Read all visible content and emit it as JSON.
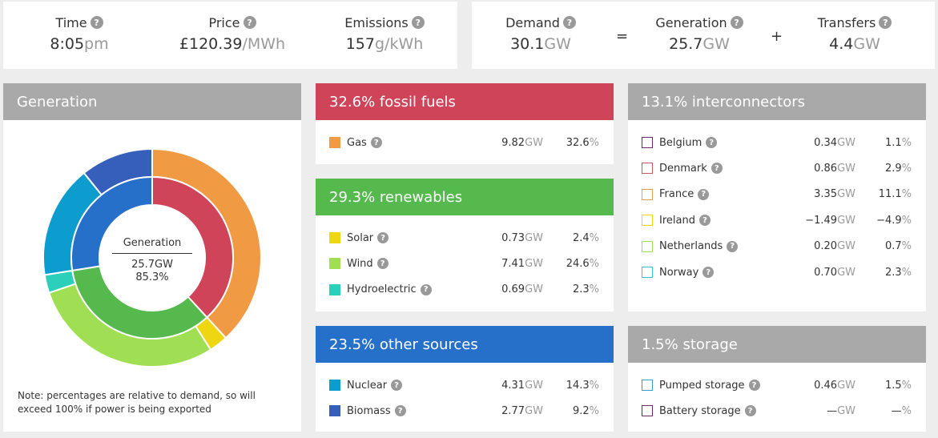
{
  "top_left": {
    "time": {
      "label": "Time",
      "value": "8:05",
      "unit": "pm"
    },
    "price": {
      "label": "Price",
      "value": "£120.39",
      "unit": "/MWh"
    },
    "emissions": {
      "label": "Emissions",
      "value": "157",
      "unit": "g/kWh"
    }
  },
  "top_right": {
    "demand": {
      "label": "Demand",
      "value": "30.1",
      "unit": "GW"
    },
    "equals": "=",
    "generation": {
      "label": "Generation",
      "value": "25.7",
      "unit": "GW"
    },
    "plus": "+",
    "transfers": {
      "label": "Transfers",
      "value": "4.4",
      "unit": "GW"
    }
  },
  "help_glyph": "?",
  "generation_panel": {
    "title": "Generation",
    "center_label": "Generation",
    "center_gw": "25.7GW",
    "center_pct": "85.3%",
    "note": "Note: percentages are relative to demand, so will exceed 100% if power is being exported"
  },
  "chart_data": {
    "type": "pie",
    "inner_ring": [
      {
        "label": "fossil fuels",
        "percent": 32.6,
        "color": "#cf4459"
      },
      {
        "label": "renewables",
        "percent": 29.3,
        "color": "#56b94d"
      },
      {
        "label": "other sources",
        "percent": 23.5,
        "color": "#2770c9"
      }
    ],
    "outer_ring": [
      {
        "label": "Gas",
        "percent": 32.6,
        "color": "#f09a43"
      },
      {
        "label": "Solar",
        "percent": 2.4,
        "color": "#eed612"
      },
      {
        "label": "Wind",
        "percent": 24.6,
        "color": "#a0df53"
      },
      {
        "label": "Hydroelectric",
        "percent": 2.3,
        "color": "#2ccfb9"
      },
      {
        "label": "Nuclear",
        "percent": 14.3,
        "color": "#0d9cce"
      },
      {
        "label": "Biomass",
        "percent": 9.2,
        "color": "#355fba"
      }
    ]
  },
  "fossil": {
    "title": "32.6% fossil fuels",
    "color": "#cf4459",
    "rows": [
      {
        "name": "Gas",
        "value": "9.82",
        "unit": "GW",
        "pct": "32.6",
        "pct_unit": "%",
        "color": "#f09a43"
      }
    ]
  },
  "renewables": {
    "title": "29.3% renewables",
    "color": "#56b94d",
    "rows": [
      {
        "name": "Solar",
        "value": "0.73",
        "unit": "GW",
        "pct": "2.4",
        "pct_unit": "%",
        "color": "#eed612"
      },
      {
        "name": "Wind",
        "value": "7.41",
        "unit": "GW",
        "pct": "24.6",
        "pct_unit": "%",
        "color": "#a0df53"
      },
      {
        "name": "Hydroelectric",
        "value": "0.69",
        "unit": "GW",
        "pct": "2.3",
        "pct_unit": "%",
        "color": "#2ccfb9"
      }
    ]
  },
  "other": {
    "title": "23.5% other sources",
    "color": "#2770c9",
    "rows": [
      {
        "name": "Nuclear",
        "value": "4.31",
        "unit": "GW",
        "pct": "14.3",
        "pct_unit": "%",
        "color": "#0d9cce"
      },
      {
        "name": "Biomass",
        "value": "2.77",
        "unit": "GW",
        "pct": "9.2",
        "pct_unit": "%",
        "color": "#355fba"
      }
    ]
  },
  "interconnectors": {
    "title": "13.1% interconnectors",
    "color": "#a9a9a9",
    "rows": [
      {
        "name": "Belgium",
        "value": "0.34",
        "unit": "GW",
        "pct": "1.1",
        "pct_unit": "%",
        "color": "#6b2a6b"
      },
      {
        "name": "Denmark",
        "value": "0.86",
        "unit": "GW",
        "pct": "2.9",
        "pct_unit": "%",
        "color": "#c8575f"
      },
      {
        "name": "France",
        "value": "3.35",
        "unit": "GW",
        "pct": "11.1",
        "pct_unit": "%",
        "color": "#e0a050"
      },
      {
        "name": "Ireland",
        "value": "−1.49",
        "unit": "GW",
        "pct": "−4.9",
        "pct_unit": "%",
        "color": "#eed612"
      },
      {
        "name": "Netherlands",
        "value": "0.20",
        "unit": "GW",
        "pct": "0.7",
        "pct_unit": "%",
        "color": "#a0df53"
      },
      {
        "name": "Norway",
        "value": "0.70",
        "unit": "GW",
        "pct": "2.3",
        "pct_unit": "%",
        "color": "#3cc8c8"
      }
    ]
  },
  "storage": {
    "title": "1.5% storage",
    "color": "#a9a9a9",
    "rows": [
      {
        "name": "Pumped storage",
        "value": "0.46",
        "unit": "GW",
        "pct": "1.5",
        "pct_unit": "%",
        "color": "#3a9fc8"
      },
      {
        "name": "Battery storage",
        "value": "—",
        "unit": "GW",
        "pct": "—",
        "pct_unit": "%",
        "color": "#6b2a6b"
      }
    ]
  }
}
